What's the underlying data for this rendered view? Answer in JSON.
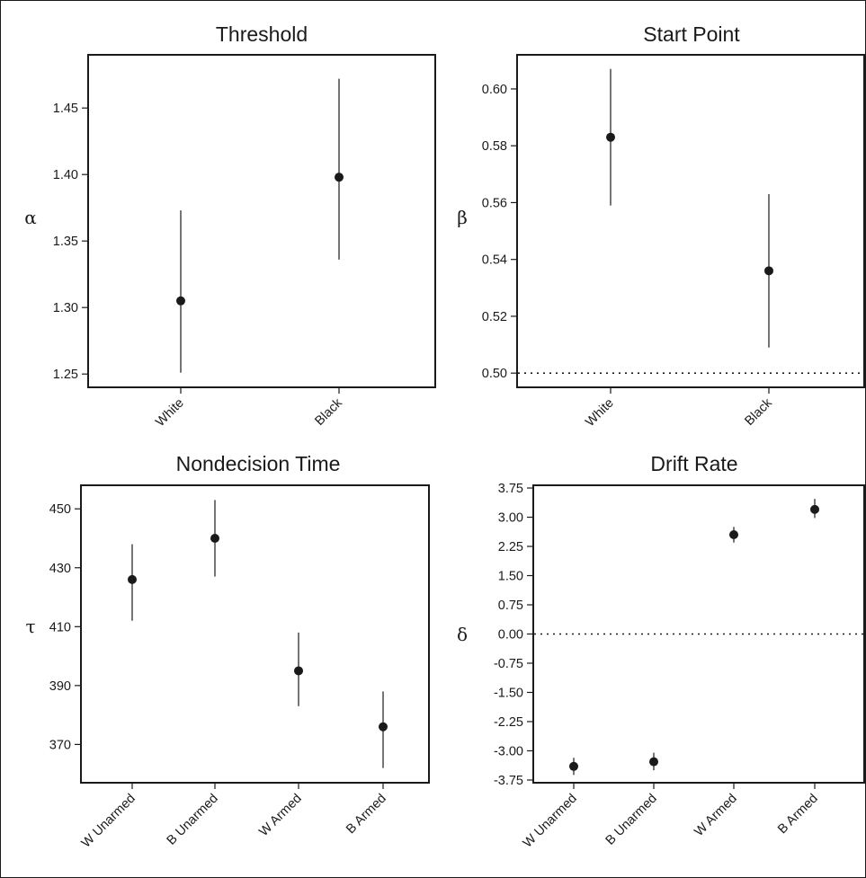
{
  "chart_data": [
    {
      "type": "scatter",
      "title": "Threshold",
      "ylabel": "α",
      "categories": [
        "White",
        "Black"
      ],
      "estimates": [
        1.305,
        1.398
      ],
      "lower": [
        1.251,
        1.336
      ],
      "upper": [
        1.373,
        1.472
      ],
      "yticks": [
        1.25,
        1.3,
        1.35,
        1.4,
        1.45
      ],
      "ytick_labels": [
        "1.25",
        "1.30",
        "1.35",
        "1.40",
        "1.45"
      ],
      "ylim": [
        1.24,
        1.49
      ],
      "reference_line": null,
      "grid": false
    },
    {
      "type": "scatter",
      "title": "Start Point",
      "ylabel": "β",
      "categories": [
        "White",
        "Black"
      ],
      "estimates": [
        0.583,
        0.536
      ],
      "lower": [
        0.559,
        0.509
      ],
      "upper": [
        0.607,
        0.563
      ],
      "yticks": [
        0.5,
        0.52,
        0.54,
        0.56,
        0.58,
        0.6
      ],
      "ytick_labels": [
        "0.50",
        "0.52",
        "0.54",
        "0.56",
        "0.58",
        "0.60"
      ],
      "ylim": [
        0.495,
        0.612
      ],
      "reference_line": 0.5,
      "grid": false
    },
    {
      "type": "scatter",
      "title": "Nondecision Time",
      "ylabel": "τ",
      "categories": [
        "W Unarmed",
        "B Unarmed",
        "W Armed",
        "B Armed"
      ],
      "estimates": [
        426,
        440,
        395,
        376
      ],
      "lower": [
        412,
        427,
        383,
        362
      ],
      "upper": [
        438,
        453,
        408,
        388
      ],
      "yticks": [
        370,
        390,
        410,
        430,
        450
      ],
      "ytick_labels": [
        "370",
        "390",
        "410",
        "430",
        "450"
      ],
      "ylim": [
        357,
        458
      ],
      "reference_line": null,
      "grid": false
    },
    {
      "type": "scatter",
      "title": "Drift Rate",
      "ylabel": "δ",
      "categories": [
        "W Unarmed",
        "B Unarmed",
        "W Armed",
        "B Armed"
      ],
      "estimates": [
        -3.4,
        -3.28,
        2.55,
        3.2
      ],
      "lower": [
        -3.62,
        -3.5,
        2.35,
        2.98
      ],
      "upper": [
        -3.18,
        -3.05,
        2.75,
        3.47
      ],
      "yticks": [
        -3.75,
        -3.0,
        -2.25,
        -1.5,
        -0.75,
        0.0,
        0.75,
        1.5,
        2.25,
        3.0,
        3.75
      ],
      "ytick_labels": [
        "-3.75",
        "-3.00",
        "-2.25",
        "-1.50",
        "-0.75",
        "0.00",
        "0.75",
        "1.50",
        "2.25",
        "3.00",
        "3.75"
      ],
      "ylim": [
        -3.82,
        3.82
      ],
      "reference_line": 0.0,
      "grid": false
    }
  ]
}
